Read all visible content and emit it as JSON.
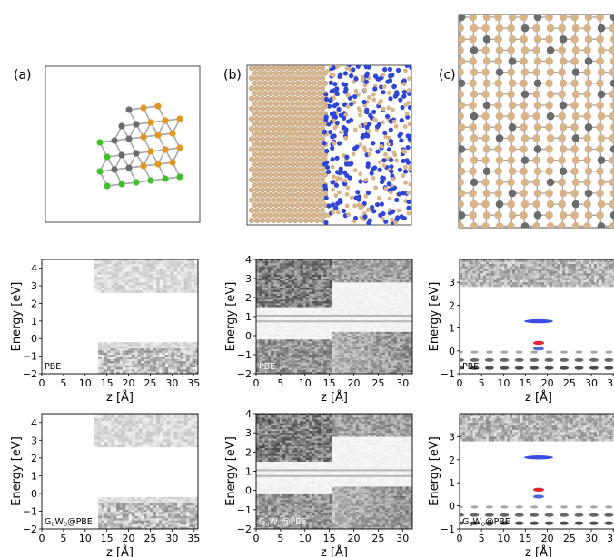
{
  "panel_labels": [
    "(a)",
    "(b)",
    "(c)"
  ],
  "plot_common": {
    "ylabel": "Energy [eV]",
    "xlabel": "z [Å]"
  },
  "colors": {
    "tan_atom": "#d8b48a",
    "gray_atom": "#6b6b6b",
    "blue_atom": "#2e45d6",
    "green_atom": "#3fc02a",
    "orange_atom": "#e3951d",
    "bond": "#a9a9a9"
  },
  "chart_data": [
    {
      "type": "heatmap",
      "panel": "a",
      "row": "PBE",
      "label": "PBE",
      "xlim": [
        0,
        36
      ],
      "ylim": [
        -2,
        4.5
      ],
      "xticks": [
        0,
        5,
        10,
        15,
        20,
        25,
        30,
        35
      ],
      "yticks": [
        -2,
        -1,
        0,
        1,
        2,
        3,
        4
      ]
    },
    {
      "type": "heatmap",
      "panel": "b",
      "row": "PBE",
      "label": "PBE",
      "xlim": [
        0,
        32
      ],
      "ylim": [
        -2,
        4
      ],
      "xticks": [
        0,
        5,
        10,
        15,
        20,
        25,
        30
      ],
      "yticks": [
        -2,
        -1,
        0,
        1,
        2,
        3,
        4
      ]
    },
    {
      "type": "heatmap",
      "panel": "c",
      "row": "PBE",
      "label": "PBE",
      "xlim": [
        0,
        36
      ],
      "ylim": [
        -1,
        4
      ],
      "xticks": [
        0,
        5,
        10,
        15,
        20,
        25,
        30,
        35
      ],
      "yticks": [
        -1,
        0,
        1,
        2,
        3
      ]
    },
    {
      "type": "heatmap",
      "panel": "a",
      "row": "GW",
      "label": "G0W0@PBE",
      "xlim": [
        0,
        36
      ],
      "ylim": [
        -2,
        4.5
      ],
      "xticks": [
        0,
        5,
        10,
        15,
        20,
        25,
        30,
        35
      ],
      "yticks": [
        -2,
        -1,
        0,
        1,
        2,
        3,
        4
      ]
    },
    {
      "type": "heatmap",
      "panel": "b",
      "row": "GW",
      "label": "G0W0@PBE",
      "xlim": [
        0,
        32
      ],
      "ylim": [
        -2,
        4
      ],
      "xticks": [
        0,
        5,
        10,
        15,
        20,
        25,
        30
      ],
      "yticks": [
        -2,
        -1,
        0,
        1,
        2,
        3,
        4
      ]
    },
    {
      "type": "heatmap",
      "panel": "c",
      "row": "GW",
      "label": "G0W0@PBE",
      "xlim": [
        0,
        36
      ],
      "ylim": [
        -1,
        4
      ],
      "xticks": [
        0,
        5,
        10,
        15,
        20,
        25,
        30,
        35
      ],
      "yticks": [
        -1,
        0,
        1,
        2,
        3
      ]
    }
  ]
}
